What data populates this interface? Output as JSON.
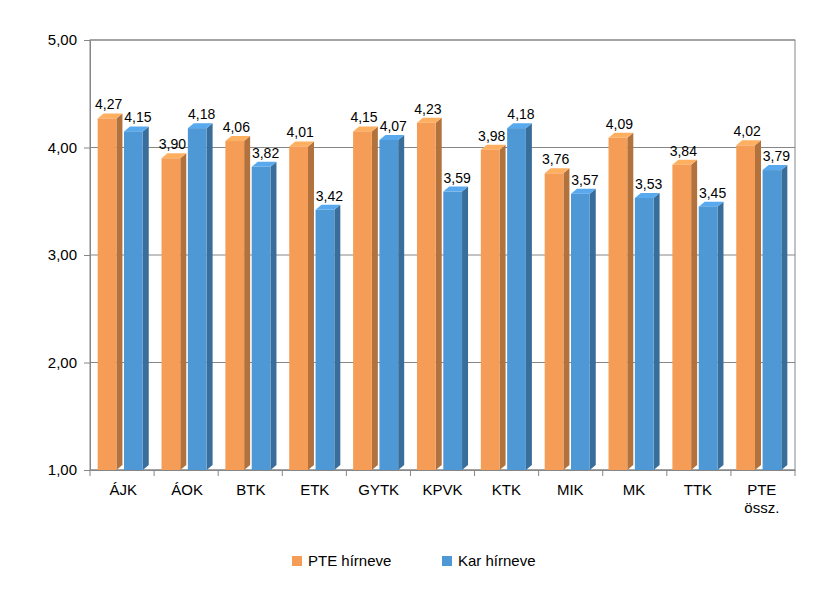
{
  "chart_data": {
    "type": "bar",
    "categories": [
      "ÁJK",
      "ÁOK",
      "BTK",
      "ETK",
      "GYTK",
      "KPVK",
      "KTK",
      "MIK",
      "MK",
      "TTK",
      "PTE össz."
    ],
    "series": [
      {
        "name": "PTE hírneve",
        "color": "#f59d56",
        "values": [
          4.27,
          3.9,
          4.06,
          4.01,
          4.15,
          4.23,
          3.98,
          3.76,
          4.09,
          3.84,
          4.02
        ],
        "value_labels": [
          "4,27",
          "3,90",
          "4,06",
          "4,01",
          "4,15",
          "4,23",
          "3,98",
          "3,76",
          "4,09",
          "3,84",
          "4,02"
        ]
      },
      {
        "name": "Kar hírneve",
        "color": "#4f98d6",
        "values": [
          4.15,
          4.18,
          3.82,
          3.42,
          4.07,
          3.59,
          4.18,
          3.57,
          3.53,
          3.45,
          3.79
        ],
        "value_labels": [
          "4,15",
          "4,18",
          "3,82",
          "3,42",
          "4,07",
          "3,59",
          "4,18",
          "3,57",
          "3,53",
          "3,45",
          "3,79"
        ]
      }
    ],
    "ylim": [
      1,
      5
    ],
    "yticks": [
      {
        "value": 1,
        "label": "1,00"
      },
      {
        "value": 2,
        "label": "2,00"
      },
      {
        "value": 3,
        "label": "3,00"
      },
      {
        "value": 4,
        "label": "4,00"
      },
      {
        "value": 5,
        "label": "5,00"
      }
    ],
    "grid": true,
    "data_labels": true,
    "legend": "bottom"
  }
}
